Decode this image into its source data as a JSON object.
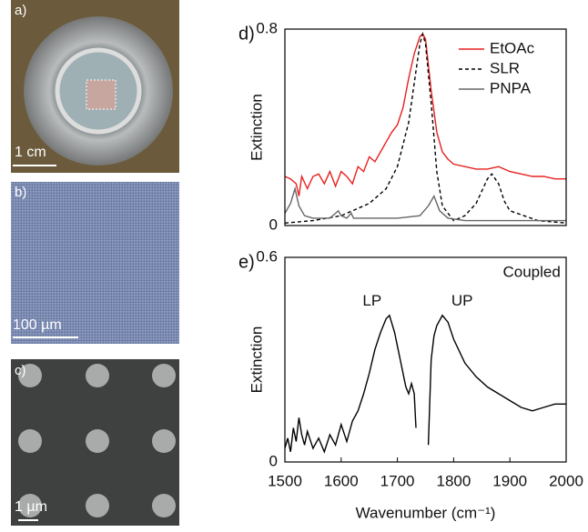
{
  "photos": [
    {
      "label": "a)",
      "scale_bar": "1 cm"
    },
    {
      "label": "b)",
      "scale_bar": "100 µm"
    },
    {
      "label": "c)",
      "scale_bar": "1 µm"
    }
  ],
  "chart_data": [
    {
      "type": "line",
      "label": "d)",
      "y_label": "Extinction",
      "xlim": [
        1500,
        2000
      ],
      "ylim": [
        0,
        0.8
      ],
      "yticks": [
        0,
        0.8
      ],
      "legend": "upper right",
      "series": [
        {
          "name": "EtOAc",
          "color": "#e8201f",
          "linestyle": "solid",
          "x": [
            1500,
            1510,
            1520,
            1525,
            1530,
            1540,
            1550,
            1560,
            1570,
            1580,
            1590,
            1600,
            1610,
            1620,
            1630,
            1640,
            1650,
            1660,
            1670,
            1680,
            1690,
            1700,
            1710,
            1720,
            1730,
            1740,
            1745,
            1750,
            1760,
            1770,
            1780,
            1790,
            1800,
            1820,
            1840,
            1860,
            1880,
            1900,
            1920,
            1940,
            1960,
            1980,
            2000
          ],
          "values": [
            0.2,
            0.19,
            0.17,
            0.12,
            0.2,
            0.15,
            0.2,
            0.21,
            0.17,
            0.22,
            0.16,
            0.22,
            0.2,
            0.17,
            0.24,
            0.22,
            0.28,
            0.26,
            0.3,
            0.34,
            0.38,
            0.41,
            0.48,
            0.6,
            0.7,
            0.77,
            0.78,
            0.76,
            0.55,
            0.38,
            0.3,
            0.27,
            0.25,
            0.24,
            0.23,
            0.23,
            0.24,
            0.22,
            0.21,
            0.2,
            0.2,
            0.19,
            0.19
          ]
        },
        {
          "name": "SLR",
          "color": "#000000",
          "linestyle": "dashed",
          "x": [
            1500,
            1550,
            1600,
            1650,
            1680,
            1700,
            1720,
            1730,
            1740,
            1745,
            1750,
            1760,
            1770,
            1780,
            1800,
            1820,
            1840,
            1850,
            1860,
            1868,
            1880,
            1890,
            1900,
            1950,
            2000
          ],
          "values": [
            0.01,
            0.02,
            0.04,
            0.09,
            0.15,
            0.24,
            0.42,
            0.58,
            0.74,
            0.78,
            0.74,
            0.5,
            0.22,
            0.08,
            0.02,
            0.04,
            0.09,
            0.14,
            0.19,
            0.21,
            0.17,
            0.1,
            0.06,
            0.02,
            0.01
          ]
        },
        {
          "name": "PNPA",
          "color": "#666666",
          "linestyle": "solid",
          "x": [
            1500,
            1510,
            1518,
            1525,
            1535,
            1550,
            1580,
            1590,
            1595,
            1600,
            1610,
            1618,
            1622,
            1630,
            1650,
            1700,
            1740,
            1755,
            1765,
            1775,
            1790,
            1820,
            1900,
            2000
          ],
          "values": [
            0.05,
            0.09,
            0.15,
            0.08,
            0.04,
            0.03,
            0.03,
            0.05,
            0.06,
            0.04,
            0.03,
            0.05,
            0.03,
            0.03,
            0.03,
            0.03,
            0.04,
            0.08,
            0.12,
            0.06,
            0.03,
            0.02,
            0.02,
            0.02
          ]
        }
      ]
    },
    {
      "type": "line",
      "label": "e)",
      "y_label": "Extinction",
      "x_label": "Wavenumber (cm⁻¹)",
      "xlim": [
        1500,
        2000
      ],
      "xticks": [
        1500,
        1600,
        1700,
        1800,
        1900,
        2000
      ],
      "ylim": [
        0,
        0.6
      ],
      "yticks": [
        0,
        0.6
      ],
      "annotations": [
        "Coupled",
        "LP",
        "UP"
      ],
      "series": [
        {
          "color": "#000000",
          "linestyle": "solid",
          "x": [
            1500,
            1505,
            1510,
            1515,
            1520,
            1525,
            1530,
            1535,
            1540,
            1550,
            1560,
            1570,
            1580,
            1590,
            1600,
            1610,
            1620,
            1630,
            1640,
            1650,
            1660,
            1670,
            1680,
            1686,
            1695,
            1705,
            1715,
            1720,
            1725,
            1730,
            1733,
            1738,
            1750,
            1755,
            1760,
            1765,
            1770,
            1780,
            1790,
            1800,
            1820,
            1840,
            1860,
            1880,
            1900,
            1920,
            1940,
            1960,
            1980,
            2000
          ],
          "values": [
            0.04,
            0.07,
            0.03,
            0.1,
            0.06,
            0.13,
            0.08,
            0.05,
            0.09,
            0.04,
            0.07,
            0.03,
            0.08,
            0.05,
            0.11,
            0.06,
            0.12,
            0.15,
            0.2,
            0.26,
            0.33,
            0.38,
            0.42,
            0.43,
            0.38,
            0.3,
            0.22,
            0.2,
            0.23,
            0.2,
            0.1,
            null,
            null,
            0.05,
            0.3,
            0.37,
            0.4,
            0.43,
            0.41,
            0.36,
            0.29,
            0.25,
            0.22,
            0.2,
            0.18,
            0.16,
            0.15,
            0.16,
            0.17,
            0.17
          ]
        }
      ]
    }
  ]
}
